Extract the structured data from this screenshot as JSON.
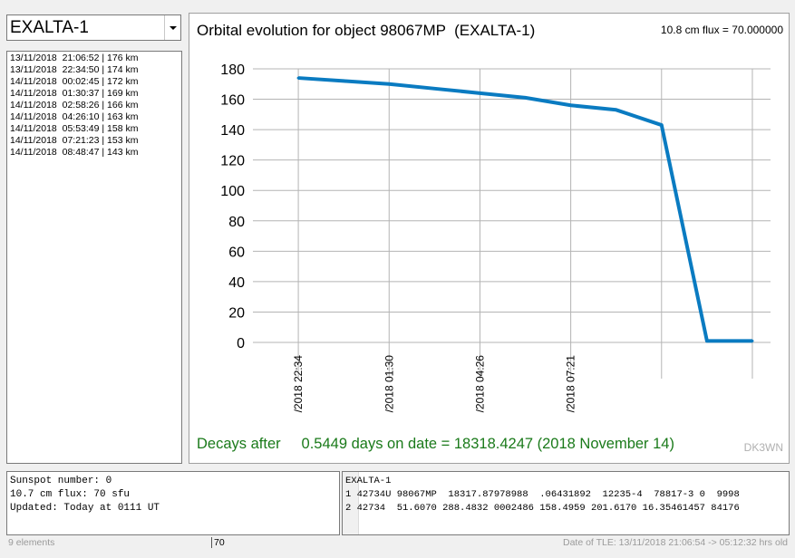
{
  "object_select": {
    "value": "EXALTA-1"
  },
  "passes": [
    {
      "date": "13/11/2018",
      "time": "21:06:52",
      "alt": "176 km"
    },
    {
      "date": "13/11/2018",
      "time": "22:34:50",
      "alt": "174 km"
    },
    {
      "date": "14/11/2018",
      "time": "00:02:45",
      "alt": "172 km"
    },
    {
      "date": "14/11/2018",
      "time": "01:30:37",
      "alt": "169 km"
    },
    {
      "date": "14/11/2018",
      "time": "02:58:26",
      "alt": "166 km"
    },
    {
      "date": "14/11/2018",
      "time": "04:26:10",
      "alt": "163 km"
    },
    {
      "date": "14/11/2018",
      "time": "05:53:49",
      "alt": "158 km"
    },
    {
      "date": "14/11/2018",
      "time": "07:21:23",
      "alt": "153 km"
    },
    {
      "date": "14/11/2018",
      "time": "08:48:47",
      "alt": "143 km"
    }
  ],
  "plot": {
    "title": "Orbital evolution for object 98067MP  (EXALTA-1)",
    "flux_label": "10.8 cm flux = 70.000000",
    "decay_text": "Decays after     0.5449 days on date = 18318.4247 (2018 November 14)",
    "signature": "DK3WN"
  },
  "chart_data": {
    "type": "line",
    "title": "Orbital evolution for object 98067MP  (EXALTA-1)",
    "ylim": [
      0,
      180
    ],
    "yticks": [
      0,
      20,
      40,
      60,
      80,
      100,
      120,
      140,
      160,
      180
    ],
    "xtick_labels": [
      "/2018 22:34",
      "/2018 01:30",
      "/2018 04:26",
      "/2018 07:21"
    ],
    "xtick_index": [
      1,
      3,
      5,
      7
    ],
    "x_index": [
      1,
      2,
      3,
      4,
      5,
      6,
      7,
      8,
      9,
      10,
      11
    ],
    "values": [
      174,
      172,
      170,
      167,
      164,
      161,
      156,
      153,
      143,
      1,
      1
    ],
    "color": "#0a7bc1"
  },
  "info": {
    "sunspot": "Sunspot number: 0",
    "flux": "10.7 cm flux: 70 sfu",
    "updated": "Updated: Today at 0111 UT"
  },
  "tle": {
    "name": "EXALTA-1",
    "line1": "1 42734U 98067MP  18317.87978988  .06431892  12235-4  78817-3 0  9998",
    "line2": "2 42734  51.6070 288.4832 0002486 158.4959 201.6170 16.35461457 84176"
  },
  "status": {
    "count": "9 elements",
    "flux_field": "70",
    "tle_date": "Date of TLE: 13/11/2018 21:06:54  -> 05:12:32 hrs old"
  }
}
